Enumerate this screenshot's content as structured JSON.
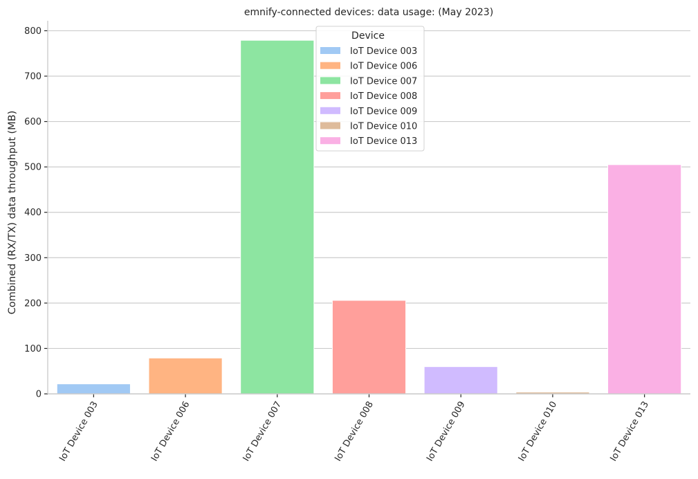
{
  "chart_data": {
    "type": "bar",
    "title": "emnify-connected devices: data usage: (May 2023)",
    "xlabel": "",
    "ylabel": "Combined (RX/TX) data throughput (MB)",
    "categories": [
      "IoT Device 003",
      "IoT Device 006",
      "IoT Device 007",
      "IoT Device 008",
      "IoT Device 009",
      "IoT Device 010",
      "IoT Device 013"
    ],
    "values": [
      22,
      79,
      779,
      206,
      60,
      4,
      505
    ],
    "colors": [
      "#a1c9f4",
      "#ffb482",
      "#8de5a1",
      "#ff9f9b",
      "#d0bbff",
      "#debb9b",
      "#fab0e4"
    ],
    "ylim": [
      0,
      822
    ],
    "yticks": [
      0,
      100,
      200,
      300,
      400,
      500,
      600,
      700,
      800
    ],
    "grid": "horizontal",
    "legend": {
      "title": "Device",
      "placement": "top-center",
      "entries": [
        "IoT Device 003",
        "IoT Device 006",
        "IoT Device 007",
        "IoT Device 008",
        "IoT Device 009",
        "IoT Device 010",
        "IoT Device 013"
      ]
    }
  }
}
